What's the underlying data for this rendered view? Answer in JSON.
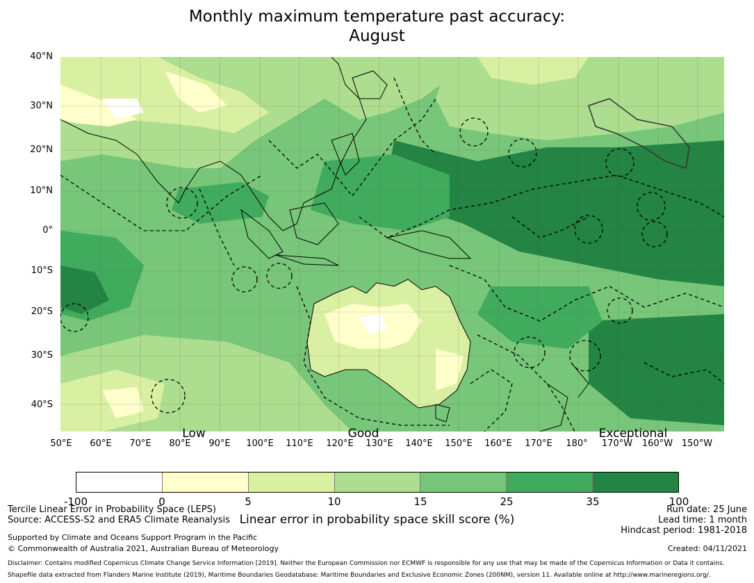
{
  "title": {
    "line1": "Monthly maximum temperature past accuracy:",
    "line2": "August"
  },
  "map": {
    "lat_labels": [
      "40°N",
      "30°N",
      "20°N",
      "10°N",
      "0°",
      "10°S",
      "20°S",
      "30°S",
      "40°S"
    ],
    "lon_labels": [
      "50°E",
      "60°E",
      "70°E",
      "80°E",
      "90°E",
      "100°E",
      "110°E",
      "120°E",
      "130°E",
      "140°E",
      "150°E",
      "160°E",
      "170°E",
      "180°",
      "170°W",
      "160°W",
      "150°W"
    ],
    "category_labels": [
      "Low",
      "Good",
      "Exceptional"
    ]
  },
  "colorbar": {
    "ticks": [
      "-100",
      "0",
      "5",
      "10",
      "15",
      "25",
      "35",
      "100"
    ],
    "colors": [
      "#ffffff",
      "#ffffcc",
      "#d9f0a3",
      "#addd8e",
      "#78c679",
      "#41ab5d",
      "#238443"
    ],
    "label": "Linear error in probability space skill score (%)"
  },
  "info_left": {
    "line1": "Tercile Linear Error in Probability Space (LEPS)",
    "line2": "Source: ACCESS-S2 and ERA5 Climate Reanalysis",
    "line3": "Supported by Climate and Oceans Support Program in the Pacific",
    "line4": "© Commonwealth of Australia 2021, Australian Bureau of Meteorology"
  },
  "info_right": {
    "run_date": "Run date: 25 June",
    "lead_time": "Lead time: 1 month",
    "hindcast": "Hindcast period: 1981-2018",
    "created": "Created: 04/11/2021"
  },
  "disclaimer": {
    "line1": "Disclaimer: Contains modified Copernicus Climate Change Service Information [2019]. Neither the European Commission nor ECMWF is responsible for any use that may be made of the Copernicus Information or Data it contains.",
    "line2": "Shapefile data extracted from Flanders Marine Institute (2019), Maritime Boundaries Geodatabase: Maritime Boundaries and Exclusive Economic Zones (200NM), version 11. Available online at http://www.marineregions.org/."
  }
}
